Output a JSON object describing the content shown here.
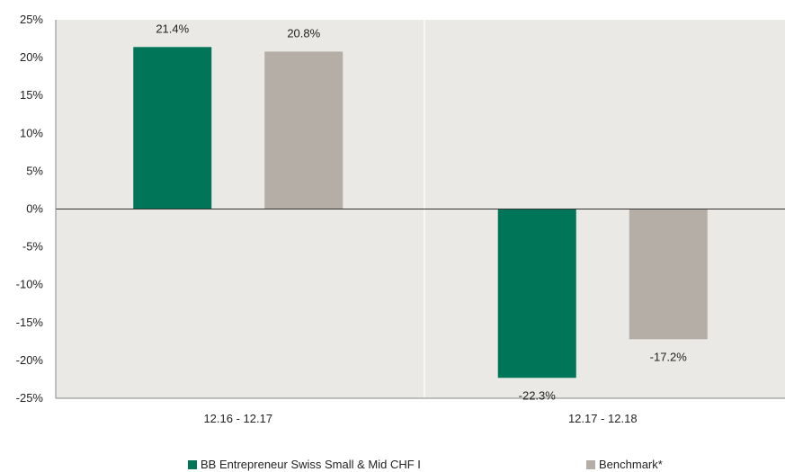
{
  "chart_data": {
    "type": "bar",
    "categories": [
      "12.16 - 12.17",
      "12.17 - 12.18"
    ],
    "series": [
      {
        "name": "BB Entrepreneur Swiss Small & Mid CHF I",
        "color": "#007558",
        "values": [
          21.4,
          -22.3
        ],
        "labels": [
          "21.4%",
          "-22.3%"
        ]
      },
      {
        "name": "Benchmark*",
        "color": "#b5aea7",
        "values": [
          20.8,
          -17.2
        ],
        "labels": [
          "20.8%",
          "-17.2%"
        ]
      }
    ],
    "ylim": [
      -25,
      25
    ],
    "yticks": [
      "25%",
      "20%",
      "15%",
      "10%",
      "5%",
      "0%",
      "-5%",
      "-10%",
      "-15%",
      "-20%",
      "-25%"
    ],
    "ytick_values": [
      25,
      20,
      15,
      10,
      5,
      0,
      -5,
      -10,
      -15,
      -20,
      -25
    ],
    "plot_background": "#ebe9e6",
    "legend_position": "bottom"
  }
}
